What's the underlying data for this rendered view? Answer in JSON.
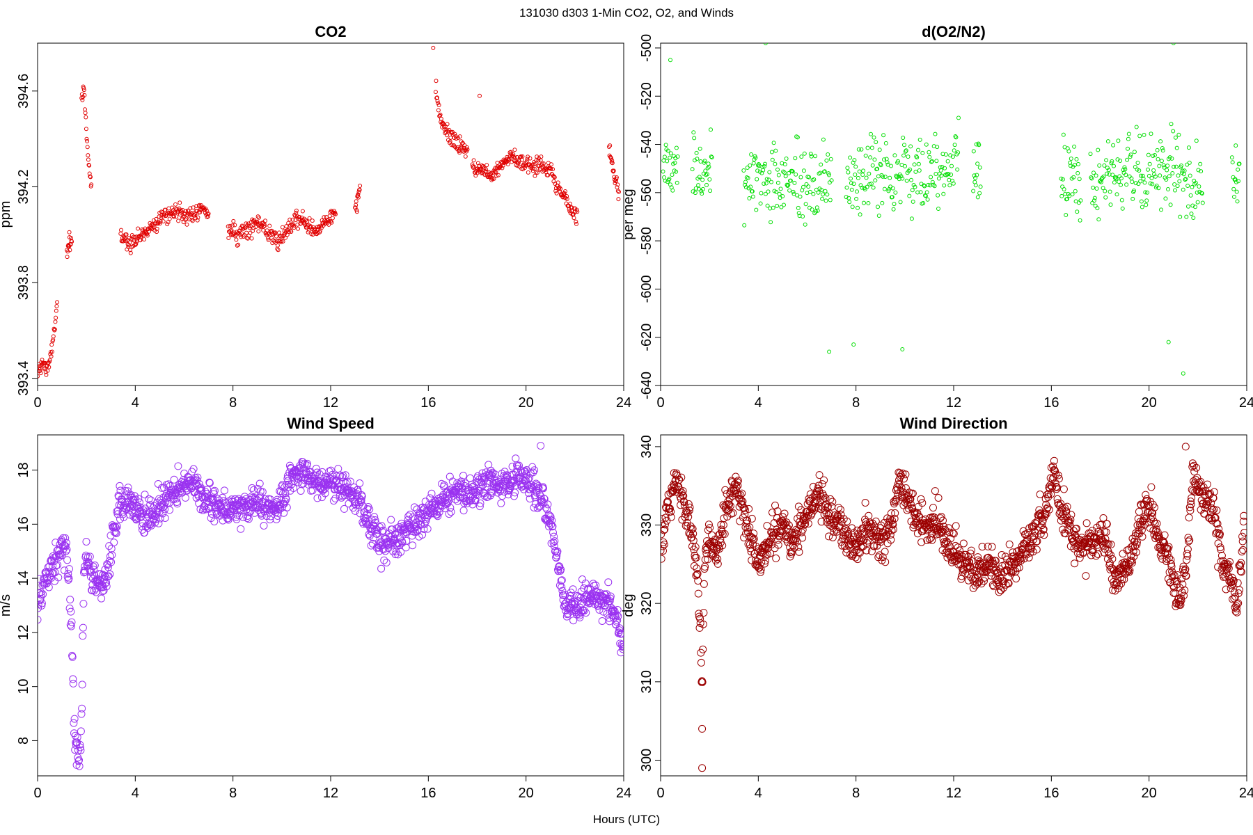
{
  "suptitle": "131030   d303   1-Min CO2, O2, and Winds",
  "xlabel": "Hours (UTC)",
  "chart_data": [
    {
      "type": "scatter",
      "title": "CO2",
      "ylabel": "ppm",
      "xlim": [
        0,
        24
      ],
      "ylim": [
        393.37,
        394.8
      ],
      "xticks": [
        0,
        4,
        8,
        12,
        16,
        20,
        24
      ],
      "yticks": [
        393.4,
        393.8,
        394.2,
        394.6
      ],
      "color": "#e00000",
      "marker": "small-open-circle",
      "segments": [
        {
          "x": [
            0.0,
            0.2,
            0.4,
            0.6,
            0.8
          ],
          "y": [
            393.42,
            393.46,
            393.44,
            393.52,
            393.72
          ]
        },
        {
          "x": [
            1.2,
            1.4
          ],
          "y": [
            393.92,
            393.97
          ]
        },
        {
          "x": [
            1.8,
            1.9,
            2.0,
            2.1,
            2.2
          ],
          "y": [
            394.55,
            394.63,
            394.42,
            394.3,
            394.18
          ]
        },
        {
          "x": [
            3.4,
            3.8,
            4.2,
            4.6,
            5.0,
            5.4,
            5.8,
            6.2,
            6.6,
            7.0
          ],
          "y": [
            393.99,
            393.97,
            393.99,
            394.03,
            394.07,
            394.09,
            394.1,
            394.07,
            394.11,
            394.09
          ]
        },
        {
          "x": [
            7.8,
            8.2,
            8.6,
            9.0,
            9.4,
            9.8,
            10.2,
            10.6,
            11.0,
            11.4,
            11.8,
            12.2
          ],
          "y": [
            394.02,
            394.0,
            394.03,
            394.05,
            394.01,
            393.97,
            394.0,
            394.08,
            394.04,
            394.01,
            394.06,
            394.09
          ]
        },
        {
          "x": [
            13.0,
            13.2
          ],
          "y": [
            394.1,
            394.18
          ]
        },
        {
          "x": [
            16.3,
            16.5,
            16.8,
            17.2,
            17.6
          ],
          "y": [
            394.62,
            394.47,
            394.42,
            394.38,
            394.35
          ]
        },
        {
          "x": [
            17.8,
            18.2,
            18.6,
            19.0,
            19.4,
            19.8,
            20.2,
            20.6,
            21.0,
            21.4,
            21.8,
            22.1
          ],
          "y": [
            394.28,
            394.27,
            394.25,
            394.3,
            394.33,
            394.3,
            394.29,
            394.29,
            394.27,
            394.18,
            394.11,
            394.08
          ]
        },
        {
          "x": [
            23.4,
            23.6,
            23.8
          ],
          "y": [
            394.36,
            394.26,
            394.18
          ]
        }
      ],
      "outliers": [
        {
          "x": 1.3,
          "y": 394.01
        },
        {
          "x": 18.1,
          "y": 394.58
        },
        {
          "x": 16.2,
          "y": 394.78
        }
      ]
    },
    {
      "type": "scatter",
      "title": "d(O2/N2)",
      "ylabel": "per meg",
      "xlim": [
        0,
        24
      ],
      "ylim": [
        -640,
        -498
      ],
      "xticks": [
        0,
        4,
        8,
        12,
        16,
        20,
        24
      ],
      "yticks": [
        -640,
        -620,
        -600,
        -580,
        -560,
        -540,
        -520,
        -500
      ],
      "color": "#00dd00",
      "marker": "small-open-circle",
      "segments": [
        {
          "x": [
            0.1,
            0.3,
            0.5,
            0.7
          ],
          "y": [
            -548,
            -546,
            -552,
            -545
          ]
        },
        {
          "x": [
            1.3,
            1.9,
            2.1
          ],
          "y": [
            -550,
            -553,
            -547
          ]
        },
        {
          "x": [
            3.4,
            4.0,
            4.6,
            5.2,
            5.8,
            6.4,
            7.0
          ],
          "y": [
            -555,
            -553,
            -556,
            -557,
            -558,
            -558,
            -555
          ]
        },
        {
          "x": [
            7.6,
            8.2,
            8.8,
            9.4,
            10.0,
            10.6,
            11.2,
            11.8,
            12.2
          ],
          "y": [
            -556,
            -554,
            -551,
            -553,
            -552,
            -551,
            -549,
            -548,
            -546
          ]
        },
        {
          "x": [
            12.8,
            13.1
          ],
          "y": [
            -552,
            -555
          ]
        },
        {
          "x": [
            16.4,
            16.8,
            17.2
          ],
          "y": [
            -556,
            -552,
            -554
          ]
        },
        {
          "x": [
            17.6,
            18.2,
            18.8,
            19.4,
            20.0,
            20.6,
            21.2,
            21.8,
            22.2
          ],
          "y": [
            -557,
            -553,
            -552,
            -550,
            -553,
            -549,
            -552,
            -556,
            -555
          ]
        },
        {
          "x": [
            23.4,
            23.7
          ],
          "y": [
            -553,
            -552
          ]
        }
      ],
      "outliers": [
        {
          "x": 4.3,
          "y": -498
        },
        {
          "x": 21.0,
          "y": -498
        },
        {
          "x": 6.9,
          "y": -626
        },
        {
          "x": 7.9,
          "y": -623
        },
        {
          "x": 9.9,
          "y": -625
        },
        {
          "x": 20.8,
          "y": -622
        },
        {
          "x": 21.4,
          "y": -635
        },
        {
          "x": 0.4,
          "y": -505
        }
      ]
    },
    {
      "type": "scatter",
      "title": "Wind Speed",
      "ylabel": "m/s",
      "xlim": [
        0,
        24
      ],
      "ylim": [
        6.7,
        19.3
      ],
      "xticks": [
        0,
        4,
        8,
        12,
        16,
        20,
        24
      ],
      "yticks": [
        8,
        10,
        12,
        14,
        16,
        18
      ],
      "color": "#9a32f0",
      "marker": "open-circle",
      "segments": [
        {
          "x": [
            0.0,
            0.2,
            0.4,
            0.6,
            0.8,
            1.0,
            1.2,
            1.4,
            1.5,
            1.6,
            1.7,
            1.8,
            1.9,
            2.0,
            2.2,
            2.4,
            2.6,
            2.8,
            3.0,
            3.2,
            3.4,
            3.7,
            4.0,
            4.4,
            4.8,
            5.2,
            5.6,
            6.0,
            6.4,
            6.8,
            7.2,
            7.6,
            8.0,
            8.4,
            8.8,
            9.2,
            9.6,
            10.0,
            10.4,
            10.8,
            11.2,
            11.6,
            12.0,
            12.4,
            12.8,
            13.2,
            13.6,
            14.0,
            14.4,
            14.8,
            15.2,
            15.6,
            16.0,
            16.4,
            16.8,
            17.2,
            17.6,
            18.0,
            18.4,
            18.8,
            19.2,
            19.6,
            20.0,
            20.4,
            20.8,
            21.2,
            21.6,
            22.0,
            22.4,
            22.8,
            23.2,
            23.6,
            24.0
          ],
          "y": [
            12.9,
            13.5,
            14.0,
            14.5,
            14.9,
            15.0,
            14.8,
            12.0,
            8.5,
            7.6,
            7.4,
            8.2,
            14.3,
            14.6,
            14.2,
            13.7,
            13.8,
            14.1,
            14.9,
            16.1,
            16.7,
            16.8,
            16.5,
            16.2,
            16.4,
            16.8,
            17.1,
            17.4,
            17.6,
            17.0,
            16.8,
            16.6,
            16.4,
            16.6,
            16.8,
            16.7,
            16.5,
            16.8,
            17.7,
            17.9,
            17.7,
            17.5,
            17.6,
            17.3,
            17.2,
            16.8,
            16.0,
            15.4,
            15.3,
            15.5,
            15.8,
            16.1,
            16.5,
            16.8,
            17.0,
            17.4,
            17.0,
            17.3,
            17.8,
            17.4,
            17.3,
            17.8,
            17.8,
            17.3,
            16.6,
            15.1,
            13.1,
            12.8,
            13.2,
            13.4,
            13.2,
            12.8,
            11.4
          ]
        }
      ],
      "outliers": [
        {
          "x": 20.6,
          "y": 18.9
        },
        {
          "x": 1.6,
          "y": 7.1
        }
      ]
    },
    {
      "type": "scatter",
      "title": "Wind Direction",
      "ylabel": "deg",
      "xlim": [
        0,
        24
      ],
      "ylim": [
        298,
        341.5
      ],
      "xticks": [
        0,
        4,
        8,
        12,
        16,
        20,
        24
      ],
      "yticks": [
        300,
        310,
        320,
        330,
        340
      ],
      "color": "#9c0000",
      "marker": "open-circle",
      "segments": [
        {
          "x": [
            0.0,
            0.3,
            0.6,
            0.9,
            1.2,
            1.5,
            1.6,
            1.7,
            1.8,
            2.0,
            2.3,
            2.6,
            2.9,
            3.2,
            3.5,
            3.8,
            4.1,
            4.4,
            4.7,
            5.0,
            5.3,
            5.6,
            5.9,
            6.2,
            6.5,
            6.8,
            7.1,
            7.4,
            7.7,
            8.0,
            8.3,
            8.6,
            8.9,
            9.2,
            9.5,
            9.8,
            10.1,
            10.4,
            10.7,
            11.0,
            11.3,
            11.6,
            11.9,
            12.2,
            12.5,
            12.8,
            13.1,
            13.4,
            13.7,
            14.0,
            14.3,
            14.6,
            14.9,
            15.2,
            15.5,
            15.8,
            16.1,
            16.4,
            16.7,
            17.0,
            17.3,
            17.6,
            17.9,
            18.2,
            18.5,
            18.8,
            19.1,
            19.4,
            19.7,
            20.0,
            20.3,
            20.6,
            20.9,
            21.2,
            21.5,
            21.8,
            22.1,
            22.4,
            22.7,
            23.0,
            23.3,
            23.6,
            23.9
          ],
          "y": [
            327,
            332,
            336,
            333,
            330,
            324,
            318,
            308,
            326,
            328,
            326,
            331,
            334,
            335,
            330,
            327,
            325,
            328,
            329,
            330,
            328,
            329,
            331,
            333,
            334,
            332,
            331,
            330,
            328,
            327,
            329,
            330,
            328,
            328,
            331,
            336,
            333,
            331,
            330,
            330,
            330,
            329,
            327,
            326,
            325,
            324,
            324,
            325,
            324,
            323,
            325,
            325,
            327,
            328,
            330,
            332,
            337,
            332,
            330,
            328,
            327,
            328,
            328,
            329,
            324,
            323,
            325,
            327,
            331,
            332,
            329,
            327,
            324,
            321,
            323,
            337,
            334,
            333,
            332,
            325,
            323,
            320,
            331
          ]
        }
      ],
      "outliers": [
        {
          "x": 1.7,
          "y": 299
        },
        {
          "x": 1.7,
          "y": 304
        },
        {
          "x": 21.5,
          "y": 340
        }
      ]
    }
  ]
}
